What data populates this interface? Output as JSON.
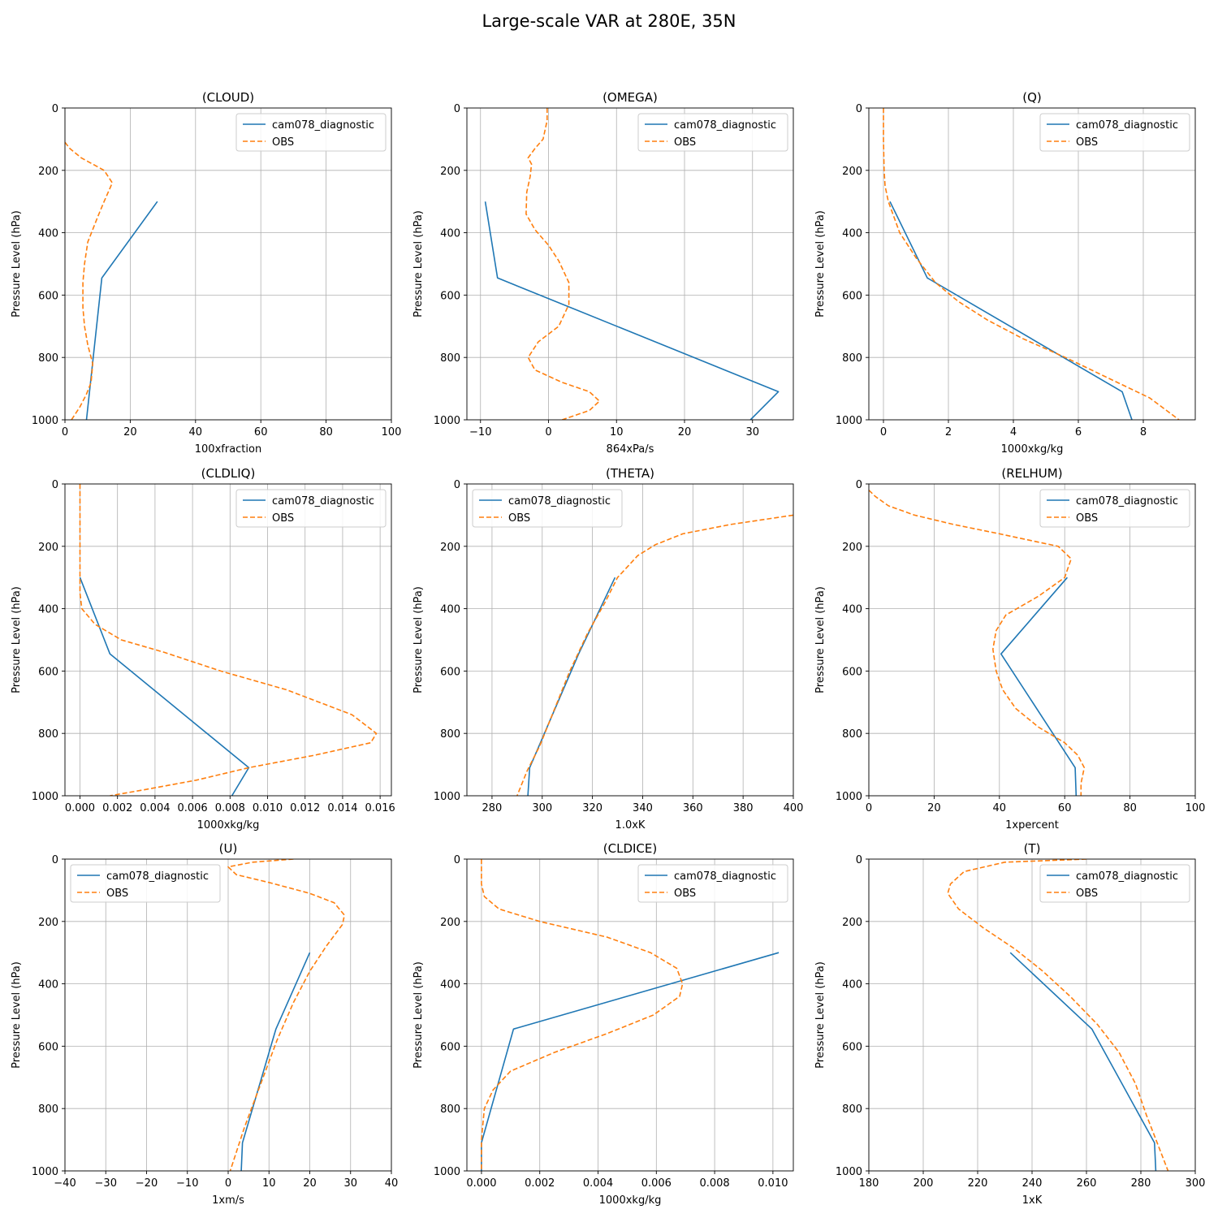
{
  "title": "Large-scale VAR at 280E, 35N",
  "colors": {
    "model": "#1f77b4",
    "obs": "#ff7f0e",
    "grid": "#b0b0b0"
  },
  "chart_data": [
    {
      "type": "line",
      "title": "(CLOUD)",
      "xlabel": "100xfraction",
      "ylabel": "Pressure Level (hPa)",
      "xlim": [
        0,
        100
      ],
      "ylim": [
        1000,
        0
      ],
      "xticks": [
        0,
        20,
        40,
        60,
        80,
        100
      ],
      "xtick_labels": [
        "0",
        "20",
        "40",
        "60",
        "80",
        "100"
      ],
      "yticks": [
        0,
        200,
        400,
        600,
        800,
        1000
      ],
      "grid": true,
      "legend": "top-right",
      "series": [
        {
          "name": "cam078_diagnostic",
          "style": "solid",
          "x": [
            28.3,
            11.3,
            6.6
          ],
          "y": [
            300,
            545,
            1000
          ]
        },
        {
          "name": "OBS",
          "style": "dashed",
          "x": [
            0,
            1.5,
            5,
            12,
            14.5,
            12,
            10,
            7,
            6,
            5.5,
            5.5,
            6,
            7,
            8.5,
            8,
            6.5,
            4.5,
            2
          ],
          "y": [
            110,
            130,
            160,
            200,
            240,
            300,
            350,
            430,
            500,
            560,
            640,
            700,
            760,
            820,
            880,
            920,
            960,
            1000
          ]
        }
      ]
    },
    {
      "type": "line",
      "title": "(OMEGA)",
      "xlabel": "864xPa/s",
      "ylabel": "Pressure Level (hPa)",
      "xlim": [
        -12,
        36
      ],
      "ylim": [
        1000,
        0
      ],
      "xticks": [
        -10,
        0,
        10,
        20,
        30
      ],
      "xtick_labels": [
        "−10",
        "0",
        "10",
        "20",
        "30"
      ],
      "yticks": [
        0,
        200,
        400,
        600,
        800,
        1000
      ],
      "grid": true,
      "legend": "top-right",
      "series": [
        {
          "name": "cam078_diagnostic",
          "style": "solid",
          "x": [
            -9.3,
            -7.5,
            33.8,
            29.7
          ],
          "y": [
            300,
            545,
            910,
            1000
          ]
        },
        {
          "name": "OBS",
          "style": "dashed",
          "x": [
            -0.2,
            -0.2,
            -0.8,
            -2,
            -3,
            -2.5,
            -2.7,
            -3.2,
            -3.3,
            -2,
            0,
            1.5,
            3,
            3,
            1.5,
            -1.5,
            -3,
            -2,
            2,
            6,
            7.5,
            6,
            2
          ],
          "y": [
            0,
            40,
            100,
            130,
            160,
            180,
            220,
            270,
            340,
            390,
            440,
            490,
            560,
            630,
            700,
            750,
            800,
            840,
            880,
            910,
            940,
            970,
            1000
          ]
        }
      ]
    },
    {
      "type": "line",
      "title": "(Q)",
      "xlabel": "1000xkg/kg",
      "ylabel": "Pressure Level (hPa)",
      "xlim": [
        -0.45,
        9.6
      ],
      "ylim": [
        1000,
        0
      ],
      "xticks": [
        0,
        2,
        4,
        6,
        8
      ],
      "xtick_labels": [
        "0",
        "2",
        "4",
        "6",
        "8"
      ],
      "yticks": [
        0,
        200,
        400,
        600,
        800,
        1000
      ],
      "grid": true,
      "legend": "top-right",
      "series": [
        {
          "name": "cam078_diagnostic",
          "style": "solid",
          "x": [
            0.2,
            1.35,
            7.35,
            7.65
          ],
          "y": [
            300,
            545,
            910,
            1000
          ]
        },
        {
          "name": "OBS",
          "style": "dashed",
          "x": [
            0,
            0,
            0.02,
            0.05,
            0.15,
            0.5,
            1,
            1.6,
            2.3,
            3.2,
            4.3,
            5.6,
            7.0,
            8.2,
            9.1
          ],
          "y": [
            0,
            100,
            200,
            250,
            300,
            400,
            480,
            560,
            620,
            680,
            740,
            800,
            870,
            930,
            1000
          ]
        }
      ]
    },
    {
      "type": "line",
      "title": "(CLDLIQ)",
      "xlabel": "1000xkg/kg",
      "ylabel": "Pressure Level (hPa)",
      "xlim": [
        -0.0008,
        0.0166
      ],
      "ylim": [
        1000,
        0
      ],
      "xticks": [
        0,
        0.002,
        0.004,
        0.006,
        0.008,
        0.01,
        0.012,
        0.014,
        0.016
      ],
      "xtick_labels": [
        "0.000",
        "0.002",
        "0.004",
        "0.006",
        "0.008",
        "0.010",
        "0.012",
        "0.014",
        "0.016"
      ],
      "yticks": [
        0,
        200,
        400,
        600,
        800,
        1000
      ],
      "grid": true,
      "legend": "top-right",
      "series": [
        {
          "name": "cam078_diagnostic",
          "style": "solid",
          "x": [
            0,
            0.0016,
            0.009,
            0.0081
          ],
          "y": [
            300,
            545,
            910,
            1000
          ]
        },
        {
          "name": "OBS",
          "style": "dashed",
          "x": [
            0,
            0,
            0,
            0.0001,
            0.0008,
            0.0022,
            0.0045,
            0.0075,
            0.011,
            0.0145,
            0.0158,
            0.0155,
            0.0125,
            0.009,
            0.0062,
            0.0035,
            0.0016
          ],
          "y": [
            0,
            200,
            350,
            400,
            450,
            500,
            540,
            600,
            660,
            740,
            800,
            830,
            870,
            910,
            950,
            980,
            1000
          ]
        }
      ]
    },
    {
      "type": "line",
      "title": "(THETA)",
      "xlabel": "1.0xK",
      "ylabel": "Pressure Level (hPa)",
      "xlim": [
        270,
        400
      ],
      "ylim": [
        1000,
        0
      ],
      "xticks": [
        280,
        300,
        320,
        340,
        360,
        380,
        400
      ],
      "xtick_labels": [
        "280",
        "300",
        "320",
        "340",
        "360",
        "380",
        "400"
      ],
      "yticks": [
        0,
        200,
        400,
        600,
        800,
        1000
      ],
      "grid": true,
      "legend": "top-left",
      "series": [
        {
          "name": "cam078_diagnostic",
          "style": "solid",
          "x": [
            329,
            314.5,
            295,
            294.3
          ],
          "y": [
            300,
            545,
            910,
            1000
          ]
        },
        {
          "name": "OBS",
          "style": "dashed",
          "x": [
            400,
            375,
            356,
            345,
            338,
            334,
            330,
            325,
            318,
            311,
            305,
            299,
            294,
            292,
            290
          ],
          "y": [
            100,
            130,
            160,
            195,
            230,
            265,
            300,
            380,
            480,
            600,
            720,
            840,
            920,
            960,
            1000
          ]
        }
      ]
    },
    {
      "type": "line",
      "title": "(RELHUM)",
      "xlabel": "1xpercent",
      "ylabel": "Pressure Level (hPa)",
      "xlim": [
        0,
        100
      ],
      "ylim": [
        1000,
        0
      ],
      "xticks": [
        0,
        20,
        40,
        60,
        80,
        100
      ],
      "xtick_labels": [
        "0",
        "20",
        "40",
        "60",
        "80",
        "100"
      ],
      "yticks": [
        0,
        200,
        400,
        600,
        800,
        1000
      ],
      "grid": true,
      "legend": "top-right",
      "series": [
        {
          "name": "cam078_diagnostic",
          "style": "solid",
          "x": [
            60.8,
            40.5,
            63.2,
            63.5
          ],
          "y": [
            300,
            545,
            910,
            1000
          ]
        },
        {
          "name": "OBS",
          "style": "dashed",
          "x": [
            0,
            2,
            6,
            14,
            26,
            40,
            58,
            62,
            60,
            52,
            42,
            39,
            38,
            39,
            41,
            45,
            52,
            60,
            64,
            66,
            65,
            65
          ],
          "y": [
            20,
            40,
            70,
            100,
            130,
            160,
            200,
            240,
            300,
            360,
            420,
            470,
            530,
            600,
            660,
            720,
            780,
            830,
            870,
            910,
            960,
            1000
          ]
        }
      ]
    },
    {
      "type": "line",
      "title": "(U)",
      "xlabel": "1xm/s",
      "ylabel": "Pressure Level (hPa)",
      "xlim": [
        -40,
        40
      ],
      "ylim": [
        1000,
        0
      ],
      "xticks": [
        -40,
        -30,
        -20,
        -10,
        0,
        10,
        20,
        30,
        40
      ],
      "xtick_labels": [
        "−40",
        "−30",
        "−20",
        "−10",
        "0",
        "10",
        "20",
        "30",
        "40"
      ],
      "yticks": [
        0,
        200,
        400,
        600,
        800,
        1000
      ],
      "grid": true,
      "legend": "top-left",
      "series": [
        {
          "name": "cam078_diagnostic",
          "style": "solid",
          "x": [
            20,
            11.7,
            3.5,
            3.2
          ],
          "y": [
            300,
            545,
            910,
            1000
          ]
        },
        {
          "name": "OBS",
          "style": "dashed",
          "x": [
            16,
            6,
            0,
            2,
            10,
            20,
            26,
            28.5,
            28,
            24,
            20,
            16,
            12,
            8,
            4,
            0.5
          ],
          "y": [
            0,
            10,
            25,
            50,
            75,
            110,
            140,
            180,
            210,
            280,
            360,
            460,
            580,
            720,
            860,
            1000
          ]
        }
      ]
    },
    {
      "type": "line",
      "title": "(CLDICE)",
      "xlabel": "1000xkg/kg",
      "ylabel": "Pressure Level (hPa)",
      "xlim": [
        -0.0005,
        0.0107
      ],
      "ylim": [
        1000,
        0
      ],
      "xticks": [
        0,
        0.002,
        0.004,
        0.006,
        0.008,
        0.01
      ],
      "xtick_labels": [
        "0.000",
        "0.002",
        "0.004",
        "0.006",
        "0.008",
        "0.010"
      ],
      "yticks": [
        0,
        200,
        400,
        600,
        800,
        1000
      ],
      "grid": true,
      "legend": "top-right",
      "series": [
        {
          "name": "cam078_diagnostic",
          "style": "solid",
          "x": [
            0.0102,
            0.0011,
            0.0,
            0.0
          ],
          "y": [
            300,
            545,
            910,
            1000
          ]
        },
        {
          "name": "OBS",
          "style": "dashed",
          "x": [
            0,
            0,
            0.0001,
            0.0006,
            0.002,
            0.0043,
            0.0058,
            0.0067,
            0.0069,
            0.0068,
            0.0059,
            0.0043,
            0.0025,
            0.001,
            0.0004,
            0.0001,
            0,
            0
          ],
          "y": [
            0,
            80,
            120,
            160,
            200,
            250,
            300,
            350,
            400,
            440,
            500,
            560,
            620,
            680,
            740,
            800,
            900,
            1000
          ]
        }
      ]
    },
    {
      "type": "line",
      "title": "(T)",
      "xlabel": "1xK",
      "ylabel": "Pressure Level (hPa)",
      "xlim": [
        180,
        300
      ],
      "ylim": [
        1000,
        0
      ],
      "xticks": [
        180,
        200,
        220,
        240,
        260,
        280,
        300
      ],
      "xtick_labels": [
        "180",
        "200",
        "220",
        "240",
        "260",
        "280",
        "300"
      ],
      "yticks": [
        0,
        200,
        400,
        600,
        800,
        1000
      ],
      "grid": true,
      "legend": "top-right",
      "series": [
        {
          "name": "cam078_diagnostic",
          "style": "solid",
          "x": [
            232,
            262,
            285,
            285.5
          ],
          "y": [
            300,
            545,
            910,
            1000
          ]
        },
        {
          "name": "OBS",
          "style": "dashed",
          "x": [
            260,
            230,
            215,
            210,
            209,
            213,
            222,
            234,
            244,
            254,
            264,
            272,
            278,
            282,
            286,
            290
          ],
          "y": [
            0,
            10,
            40,
            80,
            110,
            160,
            220,
            290,
            360,
            440,
            530,
            620,
            720,
            820,
            910,
            1000
          ]
        }
      ]
    }
  ]
}
